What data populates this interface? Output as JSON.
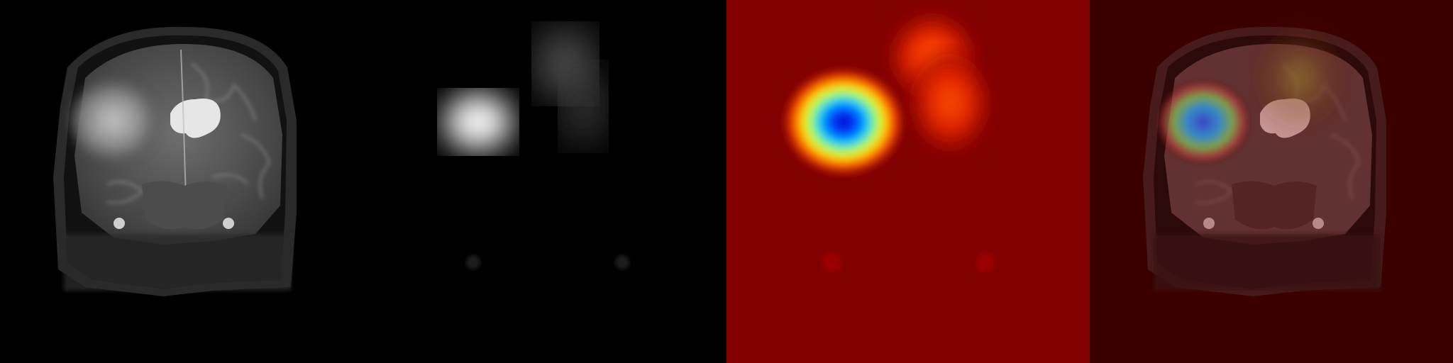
{
  "figure": {
    "panels": [
      {
        "id": "mri",
        "kind": "coronal-mri-slice"
      },
      {
        "id": "heatmap-gray",
        "kind": "grayscale-activation-map"
      },
      {
        "id": "heatmap-jet",
        "kind": "jet-colormap-activation-map"
      },
      {
        "id": "overlay",
        "kind": "activation-overlay-on-mri"
      }
    ],
    "colors": {
      "background": "#000000",
      "jet_base": "#800000",
      "jet_peak": "#0000c8",
      "overlay_tint": "#3a0000"
    }
  }
}
